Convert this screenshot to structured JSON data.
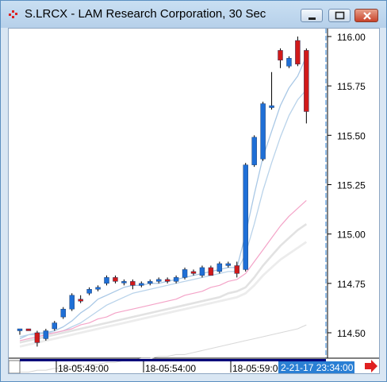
{
  "window": {
    "title": "S.LRCX - LAM Research Corporation, 30 Sec",
    "icon": "chart-icon"
  },
  "price_axis": {
    "labels": [
      "116.00",
      "115.75",
      "115.50",
      "115.25",
      "115.00",
      "114.75",
      "114.50"
    ]
  },
  "time_axis": {
    "labels": [
      "18-05:49:00",
      "18-05:54:00",
      "18-05:59:00"
    ],
    "cursor_label": "2-21-17 23:34:00"
  },
  "colors": {
    "up": "#1f6fd6",
    "down": "#d11a1a",
    "accent": "#2a7fd4",
    "scroll_arrow": "#e02020"
  },
  "chart_data": {
    "type": "candlestick",
    "title": "S.LRCX - LAM Research Corporation, 30 Sec",
    "ylim": [
      114.4,
      116.1
    ],
    "ticks": [
      116.0,
      115.75,
      115.5,
      115.25,
      115.0,
      114.75,
      114.5
    ],
    "candles": [
      {
        "o": 114.51,
        "h": 114.52,
        "l": 114.49,
        "c": 114.52
      },
      {
        "o": 114.52,
        "h": 114.52,
        "l": 114.51,
        "c": 114.51
      },
      {
        "o": 114.5,
        "h": 114.51,
        "l": 114.43,
        "c": 114.45
      },
      {
        "o": 114.47,
        "h": 114.52,
        "l": 114.46,
        "c": 114.51
      },
      {
        "o": 114.52,
        "h": 114.56,
        "l": 114.51,
        "c": 114.55
      },
      {
        "o": 114.58,
        "h": 114.63,
        "l": 114.57,
        "c": 114.62
      },
      {
        "o": 114.62,
        "h": 114.7,
        "l": 114.61,
        "c": 114.69
      },
      {
        "o": 114.67,
        "h": 114.69,
        "l": 114.65,
        "c": 114.66
      },
      {
        "o": 114.7,
        "h": 114.73,
        "l": 114.69,
        "c": 114.72
      },
      {
        "o": 114.72,
        "h": 114.74,
        "l": 114.71,
        "c": 114.73
      },
      {
        "o": 114.75,
        "h": 114.79,
        "l": 114.74,
        "c": 114.78
      },
      {
        "o": 114.78,
        "h": 114.79,
        "l": 114.75,
        "c": 114.76
      },
      {
        "o": 114.76,
        "h": 114.77,
        "l": 114.74,
        "c": 114.76
      },
      {
        "o": 114.76,
        "h": 114.77,
        "l": 114.72,
        "c": 114.74
      },
      {
        "o": 114.74,
        "h": 114.76,
        "l": 114.73,
        "c": 114.75
      },
      {
        "o": 114.75,
        "h": 114.77,
        "l": 114.74,
        "c": 114.76
      },
      {
        "o": 114.76,
        "h": 114.78,
        "l": 114.75,
        "c": 114.77
      },
      {
        "o": 114.77,
        "h": 114.78,
        "l": 114.75,
        "c": 114.76
      },
      {
        "o": 114.76,
        "h": 114.79,
        "l": 114.75,
        "c": 114.78
      },
      {
        "o": 114.78,
        "h": 114.83,
        "l": 114.77,
        "c": 114.82
      },
      {
        "o": 114.81,
        "h": 114.82,
        "l": 114.79,
        "c": 114.8
      },
      {
        "o": 114.79,
        "h": 114.84,
        "l": 114.78,
        "c": 114.83
      },
      {
        "o": 114.83,
        "h": 114.84,
        "l": 114.79,
        "c": 114.79
      },
      {
        "o": 114.81,
        "h": 114.86,
        "l": 114.8,
        "c": 114.85
      },
      {
        "o": 114.84,
        "h": 114.86,
        "l": 114.83,
        "c": 114.85
      },
      {
        "o": 114.84,
        "h": 114.86,
        "l": 114.78,
        "c": 114.8
      },
      {
        "o": 114.82,
        "h": 115.36,
        "l": 114.81,
        "c": 115.35
      },
      {
        "o": 115.35,
        "h": 115.5,
        "l": 115.34,
        "c": 115.49
      },
      {
        "o": 115.38,
        "h": 115.67,
        "l": 115.37,
        "c": 115.66
      },
      {
        "o": 115.64,
        "h": 115.82,
        "l": 115.63,
        "c": 115.65
      },
      {
        "o": 115.93,
        "h": 115.94,
        "l": 115.84,
        "c": 115.88
      },
      {
        "o": 115.85,
        "h": 115.9,
        "l": 115.84,
        "c": 115.89
      },
      {
        "o": 115.98,
        "h": 116.0,
        "l": 115.85,
        "c": 115.86
      },
      {
        "o": 115.93,
        "h": 115.94,
        "l": 115.56,
        "c": 115.62
      }
    ],
    "overlays": [
      {
        "color": "#a9c8e6",
        "width": 1.3,
        "values": [
          114.47,
          114.49,
          114.5,
          114.5,
          114.51,
          114.53,
          114.56,
          114.6,
          114.63,
          114.67,
          114.69,
          114.71,
          114.73,
          114.74,
          114.74,
          114.75,
          114.75,
          114.76,
          114.77,
          114.78,
          114.79,
          114.8,
          114.81,
          114.82,
          114.83,
          114.83,
          115.0,
          115.2,
          115.39,
          115.52,
          115.65,
          115.74,
          115.8,
          115.9
        ]
      },
      {
        "color": "#b9d3ea",
        "width": 1.3,
        "values": [
          114.48,
          114.49,
          114.49,
          114.5,
          114.5,
          114.51,
          114.53,
          114.55,
          114.58,
          114.61,
          114.64,
          114.66,
          114.68,
          114.7,
          114.71,
          114.72,
          114.73,
          114.74,
          114.75,
          114.76,
          114.77,
          114.78,
          114.79,
          114.8,
          114.81,
          114.81,
          114.9,
          115.05,
          115.22,
          115.36,
          115.49,
          115.6,
          115.68,
          115.73
        ]
      },
      {
        "color": "#f4a4c8",
        "width": 1.2,
        "values": [
          114.46,
          114.47,
          114.48,
          114.49,
          114.5,
          114.51,
          114.52,
          114.54,
          114.55,
          114.57,
          114.58,
          114.6,
          114.61,
          114.62,
          114.63,
          114.64,
          114.65,
          114.66,
          114.67,
          114.69,
          114.7,
          114.71,
          114.73,
          114.74,
          114.76,
          114.77,
          114.8,
          114.86,
          114.92,
          114.98,
          115.04,
          115.09,
          115.13,
          115.17
        ]
      },
      {
        "color": "#e2e2e2",
        "width": 2.6,
        "values": [
          114.45,
          114.46,
          114.47,
          114.48,
          114.49,
          114.5,
          114.51,
          114.52,
          114.53,
          114.54,
          114.55,
          114.56,
          114.57,
          114.58,
          114.59,
          114.6,
          114.61,
          114.62,
          114.63,
          114.64,
          114.65,
          114.66,
          114.67,
          114.68,
          114.7,
          114.71,
          114.73,
          114.78,
          114.84,
          114.89,
          114.94,
          114.98,
          115.02,
          115.05
        ]
      },
      {
        "color": "#ececec",
        "width": 2.8,
        "values": [
          114.43,
          114.44,
          114.45,
          114.46,
          114.47,
          114.48,
          114.49,
          114.5,
          114.51,
          114.52,
          114.53,
          114.54,
          114.55,
          114.56,
          114.57,
          114.58,
          114.59,
          114.6,
          114.61,
          114.62,
          114.63,
          114.64,
          114.65,
          114.66,
          114.67,
          114.68,
          114.7,
          114.74,
          114.79,
          114.83,
          114.87,
          114.9,
          114.93,
          114.96
        ]
      },
      {
        "color": "#d8d8d8",
        "width": 1.1,
        "values": [
          114.3,
          114.3,
          114.31,
          114.31,
          114.32,
          114.32,
          114.33,
          114.33,
          114.34,
          114.34,
          114.35,
          114.35,
          114.36,
          114.36,
          114.37,
          114.37,
          114.38,
          114.38,
          114.39,
          114.39,
          114.4,
          114.41,
          114.42,
          114.43,
          114.44,
          114.45,
          114.46,
          114.47,
          114.48,
          114.49,
          114.5,
          114.51,
          114.52,
          114.54
        ]
      }
    ]
  }
}
